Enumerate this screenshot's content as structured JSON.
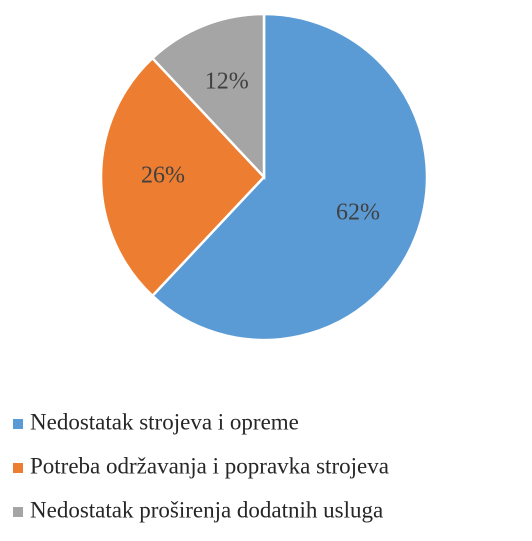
{
  "chart_data": {
    "type": "pie",
    "categories": [
      "Nedostatak strojeva i opreme",
      "Potreba održavanja i popravka strojeva",
      "Nedostatak proširenja dodatnih usluga"
    ],
    "values": [
      62,
      26,
      12
    ],
    "value_labels": [
      "62%",
      "26%",
      "12%"
    ],
    "colors": [
      "#5b9bd5",
      "#ed7d31",
      "#a5a5a5"
    ]
  }
}
